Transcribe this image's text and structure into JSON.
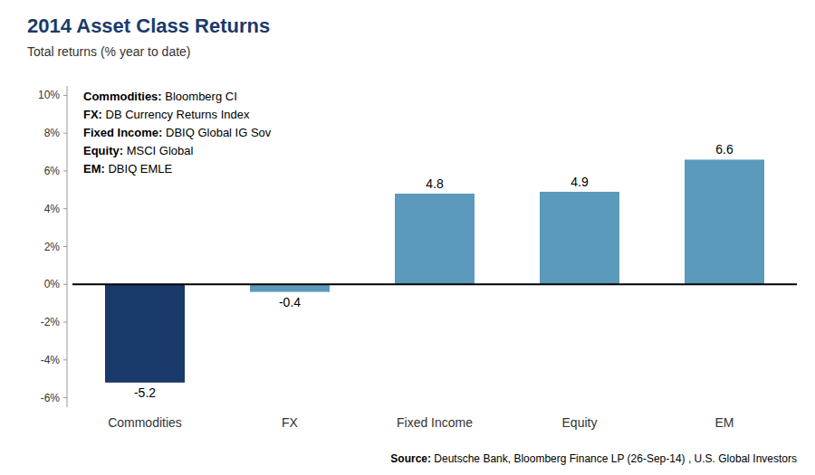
{
  "chart_data": {
    "type": "bar",
    "title": "2014 Asset Class Returns",
    "subtitle": "Total returns (% year to date)",
    "categories": [
      "Commodities",
      "FX",
      "Fixed Income",
      "Equity",
      "EM"
    ],
    "values": [
      -5.2,
      -0.4,
      4.8,
      4.9,
      6.6
    ],
    "colors": [
      "#1a3a6b",
      "#5b9aba",
      "#5b9aba",
      "#5b9aba",
      "#5b9aba"
    ],
    "ylim": [
      -6.5,
      10.5
    ],
    "yticks": [
      {
        "value": -6,
        "label": "-6%"
      },
      {
        "value": -4,
        "label": "-4%"
      },
      {
        "value": -2,
        "label": "-2%"
      },
      {
        "value": 0,
        "label": "0%"
      },
      {
        "value": 2,
        "label": "2%"
      },
      {
        "value": 4,
        "label": "4%"
      },
      {
        "value": 6,
        "label": "6%"
      },
      {
        "value": 8,
        "label": "8%"
      },
      {
        "value": 10,
        "label": "10%"
      }
    ],
    "grid": false,
    "data_labels": true,
    "annotations": [
      "Commodities: Bloomberg CI",
      "FX: DB Currency Returns Index",
      "Fixed Income: DBIQ Global IG Sov",
      "Equity: MSCI Global",
      "EM: DBIQ EMLE"
    ],
    "source": "Source: Deutsche Bank, Bloomberg Finance LP (26-Sep-14) , U.S. Global Investors"
  }
}
